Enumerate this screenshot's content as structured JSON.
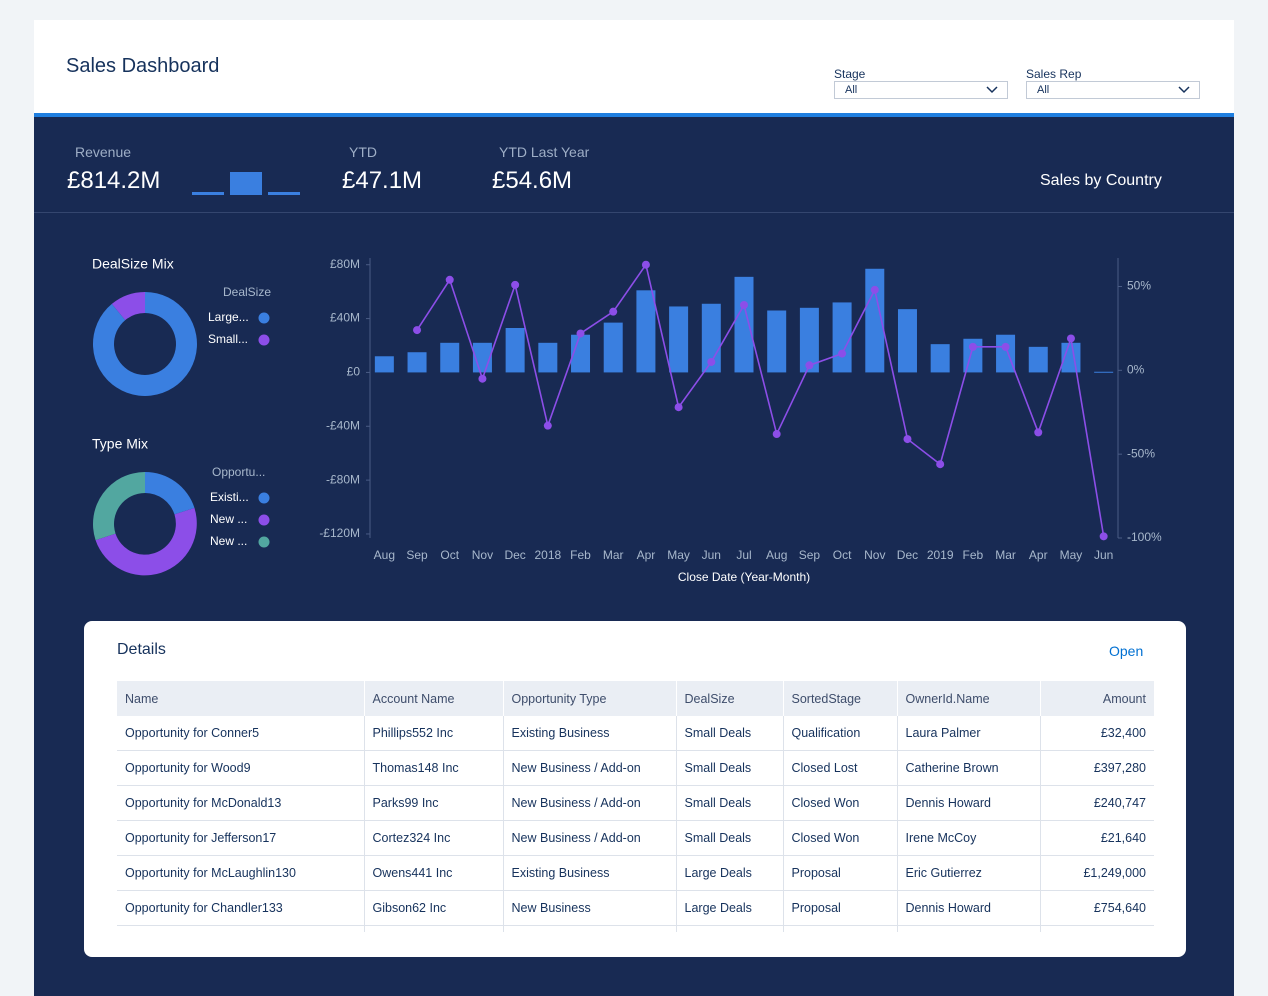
{
  "header": {
    "title": "Sales Dashboard",
    "filters": [
      {
        "label": "Stage",
        "value": "All"
      },
      {
        "label": "Sales Rep",
        "value": "All"
      }
    ]
  },
  "kpis": [
    {
      "label": "Revenue",
      "value": "£814.2M"
    },
    {
      "label": "YTD",
      "value": "£47.1M"
    },
    {
      "label": "YTD Last Year",
      "value": "£54.6M"
    }
  ],
  "sales_by_country": {
    "title": "Sales by Country"
  },
  "chart_data": [
    {
      "type": "bar",
      "values": [
        3,
        23,
        3
      ],
      "color": "#3a7fe0"
    },
    {
      "type": "donut",
      "title": "DealSize Mix",
      "legend_title": "DealSize",
      "categories": [
        "Large...",
        "Small..."
      ],
      "values": [
        89,
        11
      ],
      "colors": [
        "#3a7fe0",
        "#8c4ee8"
      ]
    },
    {
      "type": "donut",
      "title": "Type Mix",
      "legend_title": "Opportu...",
      "categories": [
        "Existi...",
        "New ...",
        "New ..."
      ],
      "values": [
        20,
        50,
        30
      ],
      "colors": [
        "#3a7fe0",
        "#8c4ee8",
        "#52a7a0"
      ]
    },
    {
      "type": "combo",
      "x_label": "Close Date (Year-Month)",
      "categories": [
        "Aug",
        "Sep",
        "Oct",
        "Nov",
        "Dec",
        "2018",
        "Feb",
        "Mar",
        "Apr",
        "May",
        "Jun",
        "Jul",
        "Aug",
        "Sep",
        "Oct",
        "Nov",
        "Dec",
        "2019",
        "Feb",
        "Mar",
        "Apr",
        "May",
        "Jun"
      ],
      "series": [
        {
          "type": "bar",
          "color": "#3a7fe0",
          "values": [
            12,
            15,
            22,
            22,
            33,
            22,
            28,
            37,
            61,
            49,
            51,
            71,
            46,
            48,
            52,
            77,
            47,
            21,
            25,
            28,
            19,
            22,
            0.5
          ]
        },
        {
          "type": "line",
          "axis": "y2",
          "color": "#8c4ee8",
          "values": [
            null,
            24,
            54,
            -5,
            51,
            -33,
            22,
            35,
            63,
            -22,
            5,
            39,
            -38,
            3,
            10,
            48,
            -41,
            -56,
            14,
            14,
            -37,
            19,
            -99
          ]
        }
      ],
      "ylim": [
        -123,
        85
      ],
      "yticks": [
        {
          "value": 80,
          "label": "£80M"
        },
        {
          "value": 40,
          "label": "£40M"
        },
        {
          "value": 0,
          "label": "£0"
        },
        {
          "value": -40,
          "label": "-£40M"
        },
        {
          "value": -80,
          "label": "-£80M"
        },
        {
          "value": -120,
          "label": "-£120M"
        }
      ],
      "y2lim": [
        -100,
        67
      ],
      "y2ticks": [
        {
          "value": 50,
          "label": "50%"
        },
        {
          "value": 0,
          "label": "0%"
        },
        {
          "value": -50,
          "label": "-50%"
        },
        {
          "value": -100,
          "label": "-100%"
        }
      ]
    }
  ],
  "details": {
    "title": "Details",
    "action": "Open",
    "columns": [
      "Name",
      "Account Name",
      "Opportunity Type",
      "DealSize",
      "SortedStage",
      "OwnerId.Name",
      "Amount"
    ],
    "rows": [
      [
        "Opportunity for Conner5",
        "Phillips552 Inc",
        "Existing Business",
        "Small Deals",
        "Qualification",
        "Laura Palmer",
        "£32,400"
      ],
      [
        "Opportunity for Wood9",
        "Thomas148 Inc",
        "New Business / Add-on",
        "Small Deals",
        "Closed Lost",
        "Catherine Brown",
        "£397,280"
      ],
      [
        "Opportunity for McDonald13",
        "Parks99 Inc",
        "New Business / Add-on",
        "Small Deals",
        "Closed Won",
        "Dennis Howard",
        "£240,747"
      ],
      [
        "Opportunity for Jefferson17",
        "Cortez324 Inc",
        "New Business / Add-on",
        "Small Deals",
        "Closed Won",
        "Irene McCoy",
        "£21,640"
      ],
      [
        "Opportunity for McLaughlin130",
        "Owens441 Inc",
        "Existing Business",
        "Large Deals",
        "Proposal",
        "Eric Gutierrez",
        "£1,249,000"
      ],
      [
        "Opportunity for Chandler133",
        "Gibson62 Inc",
        "New Business",
        "Large Deals",
        "Proposal",
        "Dennis Howard",
        "£754,640"
      ]
    ]
  }
}
